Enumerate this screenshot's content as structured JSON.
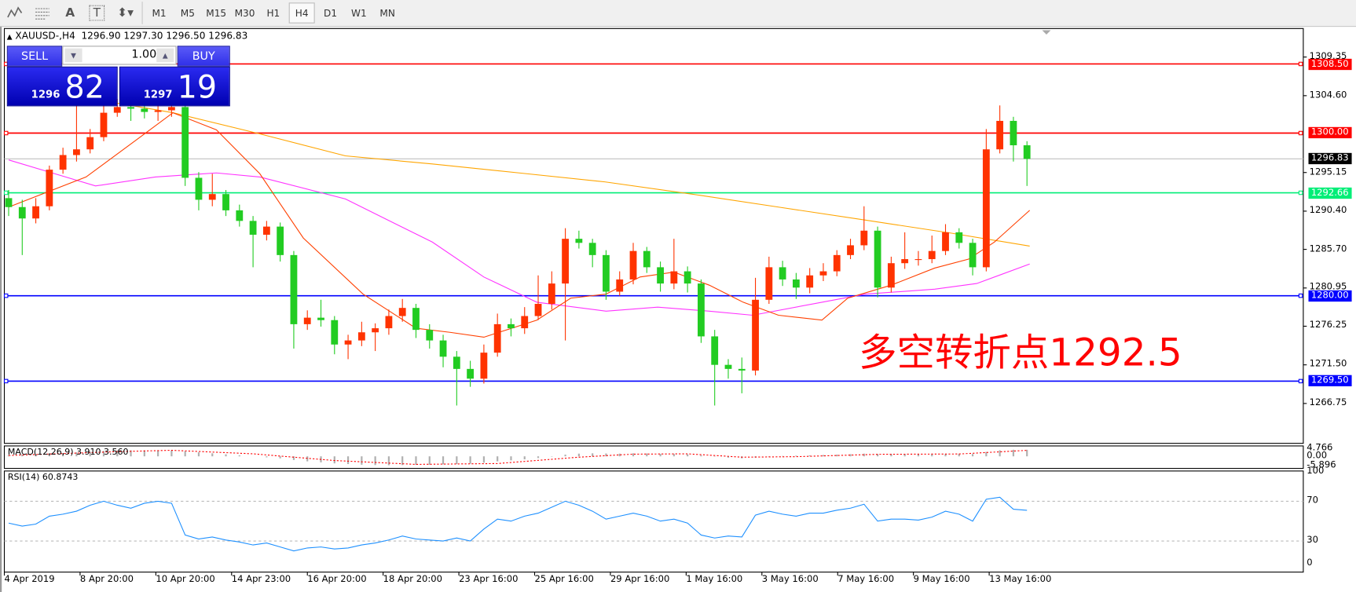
{
  "toolbar": {
    "icons": [
      "elliott-wave-icon",
      "fibonacci-icon",
      "text-icon",
      "text-label-icon",
      "arrows-icon"
    ],
    "icon_glyphs": {
      "text": "A",
      "label": "T"
    },
    "timeframes": [
      "M1",
      "M5",
      "M15",
      "M30",
      "H1",
      "H4",
      "D1",
      "W1",
      "MN"
    ],
    "active_timeframe": "H4"
  },
  "chart": {
    "symbol_line": "XAUUSD-,H4  1296.90 1297.30 1296.50 1296.83",
    "colors": {
      "bull": "#ff3300",
      "bear": "#22cc22",
      "ma_fast": "#ff4000",
      "ma_slow": "#ffa500",
      "ma_mid": "#ff33ff",
      "resistance": "#ff0000",
      "pivot": "#00ee77",
      "support": "#0000ff",
      "rsi": "#1e90ff",
      "macd_signal": "#ff0000"
    },
    "annotation": "多空转折点1292.5",
    "price_axis": [
      "1309.35",
      "1304.60",
      "1295.15",
      "1290.40",
      "1285.70",
      "1280.95",
      "1276.25",
      "1271.50",
      "1266.75"
    ],
    "levels": [
      {
        "value": "1308.50",
        "color": "#ff0000",
        "bg": "#ff0000"
      },
      {
        "value": "1300.00",
        "color": "#ff0000",
        "bg": "#ff0000"
      },
      {
        "value": "1296.83",
        "color": "#c0c0c0",
        "bg": "#000000"
      },
      {
        "value": "1292.66",
        "color": "#00ee77",
        "bg": "#00ee77"
      },
      {
        "value": "1280.00",
        "color": "#0000ff",
        "bg": "#0000ff"
      },
      {
        "value": "1269.50",
        "color": "#0000ff",
        "bg": "#0000ff"
      }
    ],
    "candles": [
      [
        1292,
        1293,
        1289.8,
        1290.9
      ],
      [
        1290.9,
        1291.8,
        1285,
        1289.5
      ],
      [
        1289.5,
        1292,
        1288.9,
        1291
      ],
      [
        1291,
        1296,
        1290.5,
        1295.5
      ],
      [
        1295.5,
        1298.2,
        1295,
        1297.3
      ],
      [
        1297.3,
        1303.5,
        1296.5,
        1298
      ],
      [
        1298,
        1300.5,
        1297.5,
        1299.5
      ],
      [
        1299.5,
        1303.8,
        1299,
        1302.5
      ],
      [
        1302.5,
        1304.2,
        1302,
        1303.2
      ],
      [
        1303.2,
        1303.8,
        1301.5,
        1303
      ],
      [
        1303,
        1303.5,
        1301.8,
        1302.6
      ],
      [
        1302.6,
        1303.5,
        1301.5,
        1302.8
      ],
      [
        1302.8,
        1304,
        1302,
        1303.2
      ],
      [
        1303.2,
        1303.5,
        1293.5,
        1294.5
      ],
      [
        1294.5,
        1295.2,
        1290.5,
        1291.8
      ],
      [
        1291.8,
        1295,
        1291,
        1292.5
      ],
      [
        1292.5,
        1293,
        1289.8,
        1290.5
      ],
      [
        1290.5,
        1291.2,
        1288.5,
        1289.2
      ],
      [
        1289.2,
        1289.8,
        1283.5,
        1287.5
      ],
      [
        1287.5,
        1289.2,
        1286.8,
        1288.5
      ],
      [
        1288.5,
        1289,
        1284.2,
        1285
      ],
      [
        1285,
        1285.5,
        1273.5,
        1276.5
      ],
      [
        1276.5,
        1278.2,
        1275.8,
        1277.3
      ],
      [
        1277.3,
        1279.5,
        1276.2,
        1277
      ],
      [
        1277,
        1277.5,
        1272.8,
        1274
      ],
      [
        1274,
        1275.2,
        1272.2,
        1274.5
      ],
      [
        1274.5,
        1276.8,
        1273.8,
        1275.5
      ],
      [
        1275.5,
        1276.6,
        1273.2,
        1276
      ],
      [
        1276,
        1278.3,
        1275.2,
        1277.5
      ],
      [
        1277.5,
        1279.6,
        1276.8,
        1278.5
      ],
      [
        1278.5,
        1279,
        1274.8,
        1275.8
      ],
      [
        1275.8,
        1276.5,
        1273.5,
        1274.5
      ],
      [
        1274.5,
        1275.2,
        1271.2,
        1272.5
      ],
      [
        1272.5,
        1273.2,
        1266.5,
        1271
      ],
      [
        1271,
        1272,
        1268.8,
        1269.8
      ],
      [
        1269.8,
        1274,
        1269.2,
        1273
      ],
      [
        1273,
        1277.8,
        1272.5,
        1276.5
      ],
      [
        1276.5,
        1277.2,
        1275,
        1276
      ],
      [
        1276,
        1278.6,
        1275.3,
        1277.5
      ],
      [
        1277.5,
        1282.5,
        1277,
        1279
      ],
      [
        1279,
        1283,
        1278.3,
        1281.5
      ],
      [
        1281.5,
        1288.3,
        1274.5,
        1287
      ],
      [
        1287,
        1288,
        1285.8,
        1286.5
      ],
      [
        1286.5,
        1287,
        1283.5,
        1285
      ],
      [
        1285,
        1285.6,
        1279.5,
        1280.5
      ],
      [
        1280.5,
        1283,
        1280,
        1282
      ],
      [
        1282,
        1286.5,
        1281.4,
        1285.5
      ],
      [
        1285.5,
        1286,
        1282.8,
        1283.5
      ],
      [
        1283.5,
        1284.2,
        1280.5,
        1281.5
      ],
      [
        1281.5,
        1287,
        1280.8,
        1283
      ],
      [
        1283,
        1283.6,
        1280.4,
        1281.5
      ],
      [
        1281.5,
        1282,
        1274.2,
        1275
      ],
      [
        1275,
        1275.8,
        1266.5,
        1271.5
      ],
      [
        1271.5,
        1272.2,
        1269.8,
        1271
      ],
      [
        1271,
        1272.4,
        1268,
        1270.8
      ],
      [
        1270.8,
        1282.2,
        1270.2,
        1279.5
      ],
      [
        1279.5,
        1284.8,
        1279,
        1283.5
      ],
      [
        1283.5,
        1284.3,
        1281.2,
        1282
      ],
      [
        1282,
        1282.8,
        1279.6,
        1281
      ],
      [
        1281,
        1283.4,
        1280.3,
        1282.5
      ],
      [
        1282.5,
        1284,
        1281.8,
        1283
      ],
      [
        1283,
        1285.6,
        1282.4,
        1285
      ],
      [
        1285,
        1287,
        1284.5,
        1286.2
      ],
      [
        1286.2,
        1291,
        1285.6,
        1288
      ],
      [
        1288,
        1288.5,
        1279.8,
        1281
      ],
      [
        1281,
        1284.8,
        1280.4,
        1284
      ],
      [
        1284,
        1287.8,
        1283.3,
        1284.5
      ],
      [
        1284.5,
        1285.5,
        1283.7,
        1284.5
      ],
      [
        1284.5,
        1287.4,
        1284,
        1285.5
      ],
      [
        1285.5,
        1288.8,
        1285,
        1287.8
      ],
      [
        1287.8,
        1288.3,
        1285.8,
        1286.5
      ],
      [
        1286.5,
        1287,
        1282.5,
        1283.5
      ],
      [
        1283.5,
        1300.5,
        1283,
        1298
      ],
      [
        1298,
        1303.4,
        1297.5,
        1301.5
      ],
      [
        1301.5,
        1302,
        1296.5,
        1298.5
      ],
      [
        1298.5,
        1299,
        1293.5,
        1296.83
      ]
    ],
    "ma_fast": [
      [
        0,
        1290.9
      ],
      [
        5.7,
        1294.6
      ],
      [
        9.6,
        1299.4
      ],
      [
        12.1,
        1302.5
      ],
      [
        15.3,
        1300.4
      ],
      [
        18.5,
        1295
      ],
      [
        21.7,
        1287.1
      ],
      [
        26.1,
        1280.2
      ],
      [
        30,
        1276
      ],
      [
        32.5,
        1275.5
      ],
      [
        35.0,
        1274.9
      ],
      [
        38.9,
        1277
      ],
      [
        41.4,
        1279.7
      ],
      [
        44,
        1280.2
      ],
      [
        46.5,
        1282.3
      ],
      [
        49,
        1282.9
      ],
      [
        51.6,
        1281.3
      ],
      [
        54.1,
        1279.2
      ],
      [
        56.7,
        1277.6
      ],
      [
        59.9,
        1277
      ],
      [
        61.8,
        1279.7
      ],
      [
        65,
        1281.3
      ],
      [
        68.2,
        1283.4
      ],
      [
        70.7,
        1284.5
      ],
      [
        72.6,
        1286.6
      ],
      [
        75.2,
        1290.5
      ]
    ],
    "ma_slow": [
      [
        5.7,
        1304.2
      ],
      [
        8.3,
        1303.6
      ],
      [
        12.1,
        1302.5
      ],
      [
        18.5,
        1299.9
      ],
      [
        24.8,
        1297.2
      ],
      [
        31.2,
        1296.2
      ],
      [
        37.6,
        1295.1
      ],
      [
        43.9,
        1294
      ],
      [
        50.3,
        1292.5
      ],
      [
        56.7,
        1290.9
      ],
      [
        63.1,
        1289.3
      ],
      [
        69.4,
        1287.7
      ],
      [
        75.2,
        1286.1
      ]
    ],
    "ma_mid": [
      [
        0,
        1296.7
      ],
      [
        3.2,
        1295.1
      ],
      [
        6.4,
        1293.5
      ],
      [
        10.8,
        1294.6
      ],
      [
        15.3,
        1295.1
      ],
      [
        18.5,
        1294.6
      ],
      [
        24.8,
        1291.9
      ],
      [
        31.2,
        1286.6
      ],
      [
        35,
        1282.3
      ],
      [
        38.9,
        1279.2
      ],
      [
        44,
        1278.1
      ],
      [
        47.8,
        1278.6
      ],
      [
        51.6,
        1278.1
      ],
      [
        54.8,
        1277.6
      ],
      [
        59.9,
        1279.2
      ],
      [
        63.1,
        1280.2
      ],
      [
        68.2,
        1280.8
      ],
      [
        71.3,
        1281.5
      ],
      [
        75.2,
        1283.9
      ]
    ]
  },
  "macd": {
    "label": "MACD(12,26,9) 3.910 3.560",
    "axis": [
      "4.766",
      "0.00",
      "-5.896"
    ],
    "histogram": [
      0.8,
      1.0,
      1.2,
      1.6,
      2.0,
      2.4,
      2.8,
      3.2,
      3.5,
      3.6,
      3.6,
      3.5,
      3.4,
      3.0,
      2.4,
      1.8,
      1.2,
      0.6,
      0,
      -0.6,
      -1.2,
      -2.2,
      -3.0,
      -3.6,
      -4.2,
      -4.6,
      -5.0,
      -5.2,
      -5.3,
      -5.2,
      -5.1,
      -5.0,
      -4.8,
      -4.6,
      -4.4,
      -3.8,
      -3.0,
      -2.4,
      -1.8,
      -1.0,
      -0.2,
      1.0,
      1.6,
      1.8,
      1.7,
      1.6,
      1.8,
      1.7,
      1.5,
      1.4,
      1.2,
      0.6,
      -0.2,
      -0.8,
      -1.2,
      -0.8,
      -0.2,
      0.2,
      0.4,
      0.6,
      0.8,
      1.0,
      1.3,
      1.6,
      1.4,
      1.4,
      1.4,
      1.3,
      1.3,
      1.4,
      1.5,
      1.4,
      2.6,
      3.6,
      3.9,
      3.91
    ],
    "signal": [
      [
        0,
        0.5
      ],
      [
        8,
        2.8
      ],
      [
        12,
        3.6
      ],
      [
        18,
        1.5
      ],
      [
        24,
        -2.5
      ],
      [
        30,
        -4.8
      ],
      [
        36,
        -4.3
      ],
      [
        42,
        -0.5
      ],
      [
        46,
        1.3
      ],
      [
        50,
        1.5
      ],
      [
        54,
        -0.5
      ],
      [
        58,
        -0.2
      ],
      [
        64,
        1.2
      ],
      [
        70,
        1.4
      ],
      [
        75,
        3.56
      ]
    ]
  },
  "rsi": {
    "label": "RSI(14) 60.8743",
    "axis": [
      "100",
      "70",
      "30",
      "0"
    ],
    "values": [
      48,
      45,
      47,
      55,
      57,
      60,
      66,
      70,
      66,
      63,
      68,
      70,
      68,
      36,
      32,
      34,
      31,
      29,
      26,
      28,
      24,
      20,
      23,
      24,
      22,
      23,
      26,
      28,
      31,
      35,
      32,
      31,
      30,
      33,
      30,
      42,
      52,
      50,
      55,
      58,
      64,
      70,
      66,
      60,
      52,
      55,
      58,
      55,
      50,
      52,
      48,
      36,
      33,
      35,
      34,
      56,
      60,
      57,
      55,
      58,
      58,
      61,
      63,
      67,
      50,
      52,
      52,
      51,
      54,
      60,
      57,
      50,
      72,
      74,
      62,
      60.87
    ]
  },
  "time_axis": [
    "4 Apr 2019",
    "8 Apr 20:00",
    "10 Apr 20:00",
    "14 Apr 23:00",
    "16 Apr 20:00",
    "18 Apr 20:00",
    "23 Apr 16:00",
    "25 Apr 16:00",
    "29 Apr 16:00",
    "1 May 16:00",
    "3 May 16:00",
    "7 May 16:00",
    "9 May 16:00",
    "13 May 16:00"
  ],
  "trade_panel": {
    "sell_label": "SELL",
    "buy_label": "BUY",
    "lot": "1.00",
    "sell_big": "1296",
    "sell_pips": "82",
    "buy_big": "1297",
    "buy_pips": "19"
  }
}
